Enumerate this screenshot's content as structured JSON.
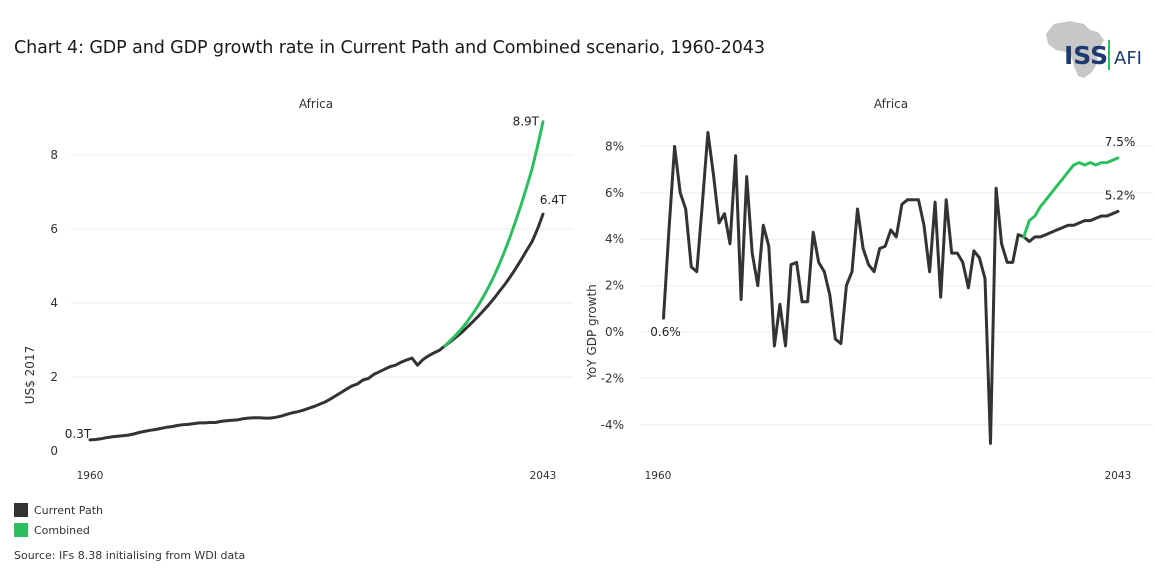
{
  "title": "Chart 4: GDP and GDP growth rate in Current Path and Combined scenario, 1960-2043",
  "logo": {
    "primary": "ISS",
    "secondary": "AFI"
  },
  "colors": {
    "current_path": "#333333",
    "combined": "#2dbe60",
    "grid": "#eeeeee",
    "logo_navy": "#1f3a6e",
    "logo_grey": "#c7c7c7",
    "logo_green": "#2dbe60"
  },
  "legend": [
    {
      "label": "Current Path",
      "color": "#333333"
    },
    {
      "label": "Combined",
      "color": "#2dbe60"
    }
  ],
  "source": "Source: IFs 8.38 initialising from WDI data",
  "chart_data": [
    {
      "type": "line",
      "title": "Africa",
      "xlabel": "",
      "ylabel": "US$ 2017",
      "xlim": [
        1960,
        2043
      ],
      "ylim": [
        0,
        9
      ],
      "x_ticks": [
        "1960",
        "2043"
      ],
      "y_ticks": [
        "0",
        "2",
        "4",
        "6",
        "8"
      ],
      "grid": true,
      "annotations": [
        {
          "text": "0.3T",
          "series": "Current Path",
          "x": 1960,
          "y": 0.3
        },
        {
          "text": "6.4T",
          "series": "Current Path",
          "x": 2043,
          "y": 6.4
        },
        {
          "text": "8.9T",
          "series": "Combined",
          "x": 2043,
          "y": 8.9
        }
      ],
      "series": [
        {
          "name": "Current Path",
          "x_start": 1960,
          "values": [
            0.3,
            0.31,
            0.33,
            0.36,
            0.38,
            0.4,
            0.41,
            0.43,
            0.46,
            0.5,
            0.53,
            0.56,
            0.58,
            0.61,
            0.64,
            0.66,
            0.69,
            0.71,
            0.72,
            0.74,
            0.76,
            0.76,
            0.77,
            0.77,
            0.8,
            0.82,
            0.83,
            0.84,
            0.87,
            0.89,
            0.9,
            0.9,
            0.89,
            0.89,
            0.91,
            0.94,
            0.99,
            1.03,
            1.06,
            1.1,
            1.15,
            1.2,
            1.26,
            1.32,
            1.4,
            1.49,
            1.58,
            1.67,
            1.76,
            1.81,
            1.92,
            1.96,
            2.07,
            2.14,
            2.21,
            2.28,
            2.32,
            2.4,
            2.46,
            2.51,
            2.32,
            2.47,
            2.57,
            2.65,
            2.72,
            2.84,
            2.95,
            3.07,
            3.19,
            3.33,
            3.47,
            3.62,
            3.78,
            3.94,
            4.12,
            4.31,
            4.5,
            4.71,
            4.93,
            5.17,
            5.42,
            5.66,
            6.0,
            6.4
          ]
        },
        {
          "name": "Combined",
          "x_start": 2025,
          "values": [
            2.84,
            2.98,
            3.13,
            3.29,
            3.47,
            3.68,
            3.9,
            4.15,
            4.42,
            4.72,
            5.05,
            5.41,
            5.8,
            6.22,
            6.66,
            7.13,
            7.63,
            8.23,
            8.9
          ]
        }
      ]
    },
    {
      "type": "line",
      "title": "Africa",
      "xlabel": "",
      "ylabel": "YoY GDP growth",
      "xlim": [
        1960,
        2043
      ],
      "ylim": [
        -5,
        9
      ],
      "x_ticks": [
        "1960",
        "2043"
      ],
      "y_ticks": [
        "-4%",
        "-2%",
        "0%",
        "2%",
        "4%",
        "6%",
        "8%"
      ],
      "grid": true,
      "annotations": [
        {
          "text": "0.6%",
          "series": "Current Path",
          "x": 1961,
          "y": 0.6
        },
        {
          "text": "5.2%",
          "series": "Current Path",
          "x": 2043,
          "y": 5.2
        },
        {
          "text": "7.5%",
          "series": "Combined",
          "x": 2043,
          "y": 7.5
        }
      ],
      "series": [
        {
          "name": "Current Path",
          "x_start": 1961,
          "values": [
            0.6,
            4.5,
            8.0,
            6.0,
            5.3,
            2.8,
            2.6,
            5.5,
            8.6,
            6.8,
            4.7,
            5.1,
            3.8,
            7.6,
            1.4,
            6.7,
            3.4,
            2.0,
            4.6,
            3.7,
            -0.6,
            1.2,
            -0.6,
            2.9,
            3.0,
            1.3,
            1.3,
            4.3,
            3.0,
            2.6,
            1.6,
            -0.3,
            -0.5,
            2.0,
            2.6,
            5.3,
            3.6,
            2.9,
            2.6,
            3.6,
            3.7,
            4.4,
            4.1,
            5.5,
            5.7,
            5.7,
            5.7,
            4.6,
            2.6,
            5.6,
            1.5,
            5.7,
            3.4,
            3.4,
            3.0,
            1.9,
            3.5,
            3.2,
            2.3,
            -4.8,
            6.2,
            3.8,
            3.0,
            3.0,
            4.2,
            4.1,
            3.9,
            4.1,
            4.1,
            4.2,
            4.3,
            4.4,
            4.5,
            4.6,
            4.6,
            4.7,
            4.8,
            4.8,
            4.9,
            5.0,
            5.0,
            5.1,
            5.2
          ]
        },
        {
          "name": "Combined",
          "x_start": 2026,
          "values": [
            4.1,
            4.8,
            5.0,
            5.4,
            5.7,
            6.0,
            6.3,
            6.6,
            6.9,
            7.2,
            7.3,
            7.2,
            7.3,
            7.2,
            7.3,
            7.3,
            7.4,
            7.5
          ]
        }
      ]
    }
  ]
}
